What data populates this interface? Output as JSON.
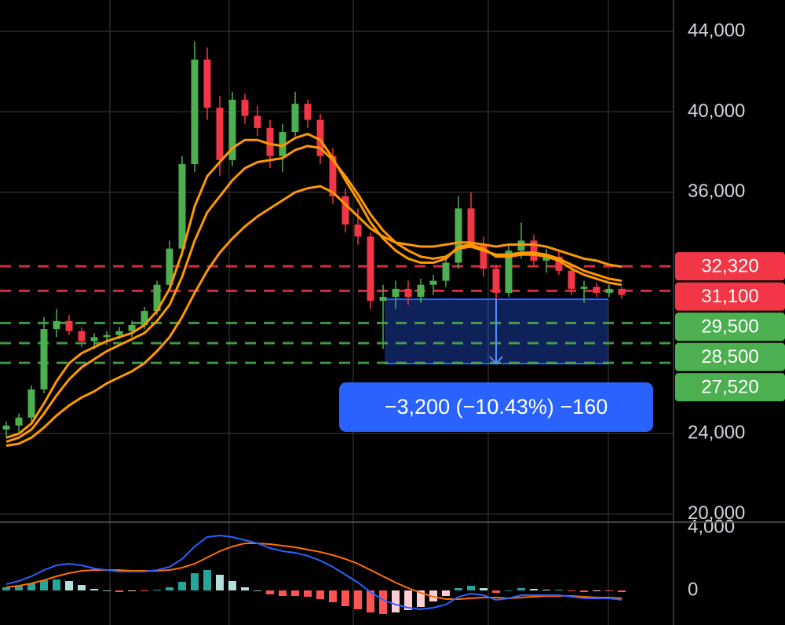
{
  "chart_data": [
    {
      "type": "candlestick",
      "open": [
        24200,
        24400,
        24800,
        26200,
        29200,
        29600,
        29100,
        28600,
        28800,
        28900,
        29100,
        29400,
        30100,
        31400,
        33200,
        37400,
        42600,
        40200,
        37600,
        40600,
        39800,
        39200,
        37800,
        39000,
        40400,
        39600,
        37800,
        35800,
        34400,
        33800,
        30600,
        30800,
        31200,
        30800,
        31400,
        31600,
        32500,
        35200,
        33400,
        32200,
        31000,
        33100,
        33600,
        32600,
        32800,
        32100,
        31200,
        31300,
        31000,
        31200
      ],
      "high": [
        24600,
        25000,
        26400,
        29800,
        30200,
        29900,
        29300,
        29000,
        29100,
        29300,
        29600,
        30300,
        31600,
        33600,
        37800,
        43500,
        43200,
        40800,
        41000,
        40900,
        40300,
        39600,
        39400,
        41000,
        40600,
        39900,
        38200,
        36200,
        35200,
        34000,
        31400,
        31600,
        31600,
        31700,
        31900,
        32800,
        35800,
        36000,
        33800,
        32400,
        33400,
        34500,
        33900,
        33200,
        33100,
        32400,
        31600,
        31500,
        31400,
        31300
      ],
      "low": [
        23800,
        24100,
        24600,
        26000,
        28800,
        28900,
        28300,
        28200,
        28400,
        28700,
        28800,
        29200,
        29900,
        31200,
        32800,
        37000,
        39600,
        36800,
        37300,
        39400,
        38800,
        37200,
        37000,
        38800,
        39200,
        37400,
        35400,
        34000,
        33400,
        30200,
        28200,
        30200,
        30400,
        30500,
        30900,
        31300,
        32200,
        33200,
        31800,
        30400,
        30800,
        32700,
        32300,
        32000,
        31900,
        30900,
        30500,
        30800,
        30800,
        30700
      ],
      "close": [
        24400,
        24800,
        26200,
        29200,
        29600,
        29100,
        28600,
        28800,
        28900,
        29100,
        29400,
        30100,
        31400,
        33200,
        37400,
        42600,
        40200,
        37600,
        40600,
        39800,
        39200,
        37800,
        39000,
        40400,
        39600,
        37800,
        35800,
        34400,
        33800,
        30600,
        30800,
        31200,
        30800,
        31400,
        31600,
        32500,
        35200,
        33400,
        32200,
        31000,
        33100,
        33600,
        32600,
        32800,
        32100,
        31200,
        31300,
        31000,
        31200,
        30900
      ],
      "up_color": "#4caf50",
      "down_color": "#f23645",
      "lines": [
        {
          "color": "#ff9800",
          "values": [
            23800,
            24000,
            24500,
            25500,
            26600,
            27500,
            28000,
            28300,
            28600,
            28800,
            29000,
            29400,
            30100,
            31200,
            33000,
            35300,
            36800,
            37500,
            38200,
            38600,
            38600,
            38400,
            38300,
            38700,
            38900,
            38600,
            37700,
            36600,
            35600,
            34500,
            33700,
            33100,
            32700,
            32500,
            32500,
            32700,
            33300,
            33400,
            33200,
            32800,
            32800,
            32900,
            32900,
            32800,
            32600,
            32200,
            31900,
            31700,
            31500,
            31400
          ]
        },
        {
          "color": "#ff9800",
          "values": [
            23600,
            23800,
            24200,
            25000,
            25900,
            26700,
            27300,
            27700,
            28100,
            28400,
            28700,
            29000,
            29600,
            30400,
            31800,
            33600,
            35000,
            35800,
            36600,
            37200,
            37500,
            37600,
            37700,
            38100,
            38300,
            38200,
            37600,
            36800,
            35900,
            34900,
            34100,
            33500,
            33100,
            32800,
            32700,
            32800,
            33200,
            33300,
            33100,
            32900,
            32900,
            33000,
            33000,
            32900,
            32700,
            32400,
            32100,
            31900,
            31700,
            31600
          ]
        },
        {
          "color": "#ff9800",
          "values": [
            23400,
            23500,
            23800,
            24300,
            24900,
            25400,
            25800,
            26100,
            26500,
            26800,
            27100,
            27500,
            28100,
            28800,
            29800,
            31000,
            32100,
            33000,
            33700,
            34300,
            34800,
            35200,
            35600,
            36000,
            36200,
            36300,
            36000,
            35400,
            34800,
            34200,
            33800,
            33500,
            33400,
            33300,
            33300,
            33400,
            33500,
            33500,
            33400,
            33300,
            33400,
            33400,
            33400,
            33300,
            33100,
            32900,
            32700,
            32600,
            32400,
            32300
          ]
        }
      ],
      "ylim": [
        19600,
        45560
      ],
      "yticks": [
        {
          "value": 20000,
          "label": "20,000"
        },
        {
          "value": 24000,
          "label": "24,000"
        },
        {
          "value": 36000,
          "label": "36,000"
        },
        {
          "value": 40000,
          "label": "40,000"
        },
        {
          "value": 44000,
          "label": "44,000"
        }
      ],
      "grid": true,
      "price_lines": [
        {
          "value": 32320,
          "label": "32,320",
          "color": "#f23645"
        },
        {
          "value": 31100,
          "label": "31,100",
          "color": "#f23645"
        },
        {
          "value": 29500,
          "label": "29,500",
          "color": "#4caf50"
        },
        {
          "value": 28500,
          "label": "28,500",
          "color": "#4caf50"
        },
        {
          "value": 27520,
          "label": "27,520",
          "color": "#4caf50"
        }
      ],
      "measure": {
        "from": 30680,
        "to": 27480,
        "label": "−3,200 (−10.43%) −160",
        "color": "#2962ff"
      }
    },
    {
      "type": "macd",
      "macd": [
        400,
        600,
        900,
        1300,
        1600,
        1700,
        1600,
        1400,
        1300,
        1200,
        1200,
        1200,
        1300,
        1500,
        2000,
        2800,
        3400,
        3500,
        3400,
        3200,
        3000,
        2700,
        2500,
        2400,
        2200,
        1900,
        1500,
        1000,
        500,
        -100,
        -600,
        -900,
        -1100,
        -1200,
        -1100,
        -900,
        -400,
        -200,
        -300,
        -600,
        -500,
        -300,
        -300,
        -300,
        -300,
        -400,
        -500,
        -500,
        -500,
        -600
      ],
      "signal": [
        200,
        300,
        450,
        650,
        900,
        1100,
        1250,
        1300,
        1300,
        1300,
        1250,
        1250,
        1250,
        1300,
        1450,
        1700,
        2100,
        2500,
        2800,
        3000,
        3000,
        2950,
        2850,
        2750,
        2600,
        2450,
        2250,
        2000,
        1700,
        1300,
        900,
        500,
        150,
        -150,
        -400,
        -550,
        -550,
        -500,
        -450,
        -450,
        -500,
        -450,
        -400,
        -350,
        -350,
        -350,
        -400,
        -450,
        -450,
        -500
      ],
      "histogram": [
        200,
        300,
        450,
        650,
        700,
        600,
        350,
        100,
        0,
        -100,
        -50,
        -50,
        50,
        200,
        550,
        1100,
        1300,
        1000,
        600,
        200,
        0,
        -250,
        -350,
        -350,
        -400,
        -550,
        -750,
        -1000,
        -1200,
        -1400,
        -1500,
        -1400,
        -1250,
        -1050,
        -700,
        -350,
        150,
        300,
        150,
        -150,
        0,
        150,
        100,
        50,
        50,
        -50,
        -100,
        -50,
        -50,
        -100
      ],
      "macd_color": "#2962ff",
      "signal_color": "#ff6d00",
      "ylim": [
        -2200,
        4200
      ],
      "yticks": [
        0,
        {
          "value": 4000,
          "label": "4,000"
        }
      ]
    }
  ]
}
